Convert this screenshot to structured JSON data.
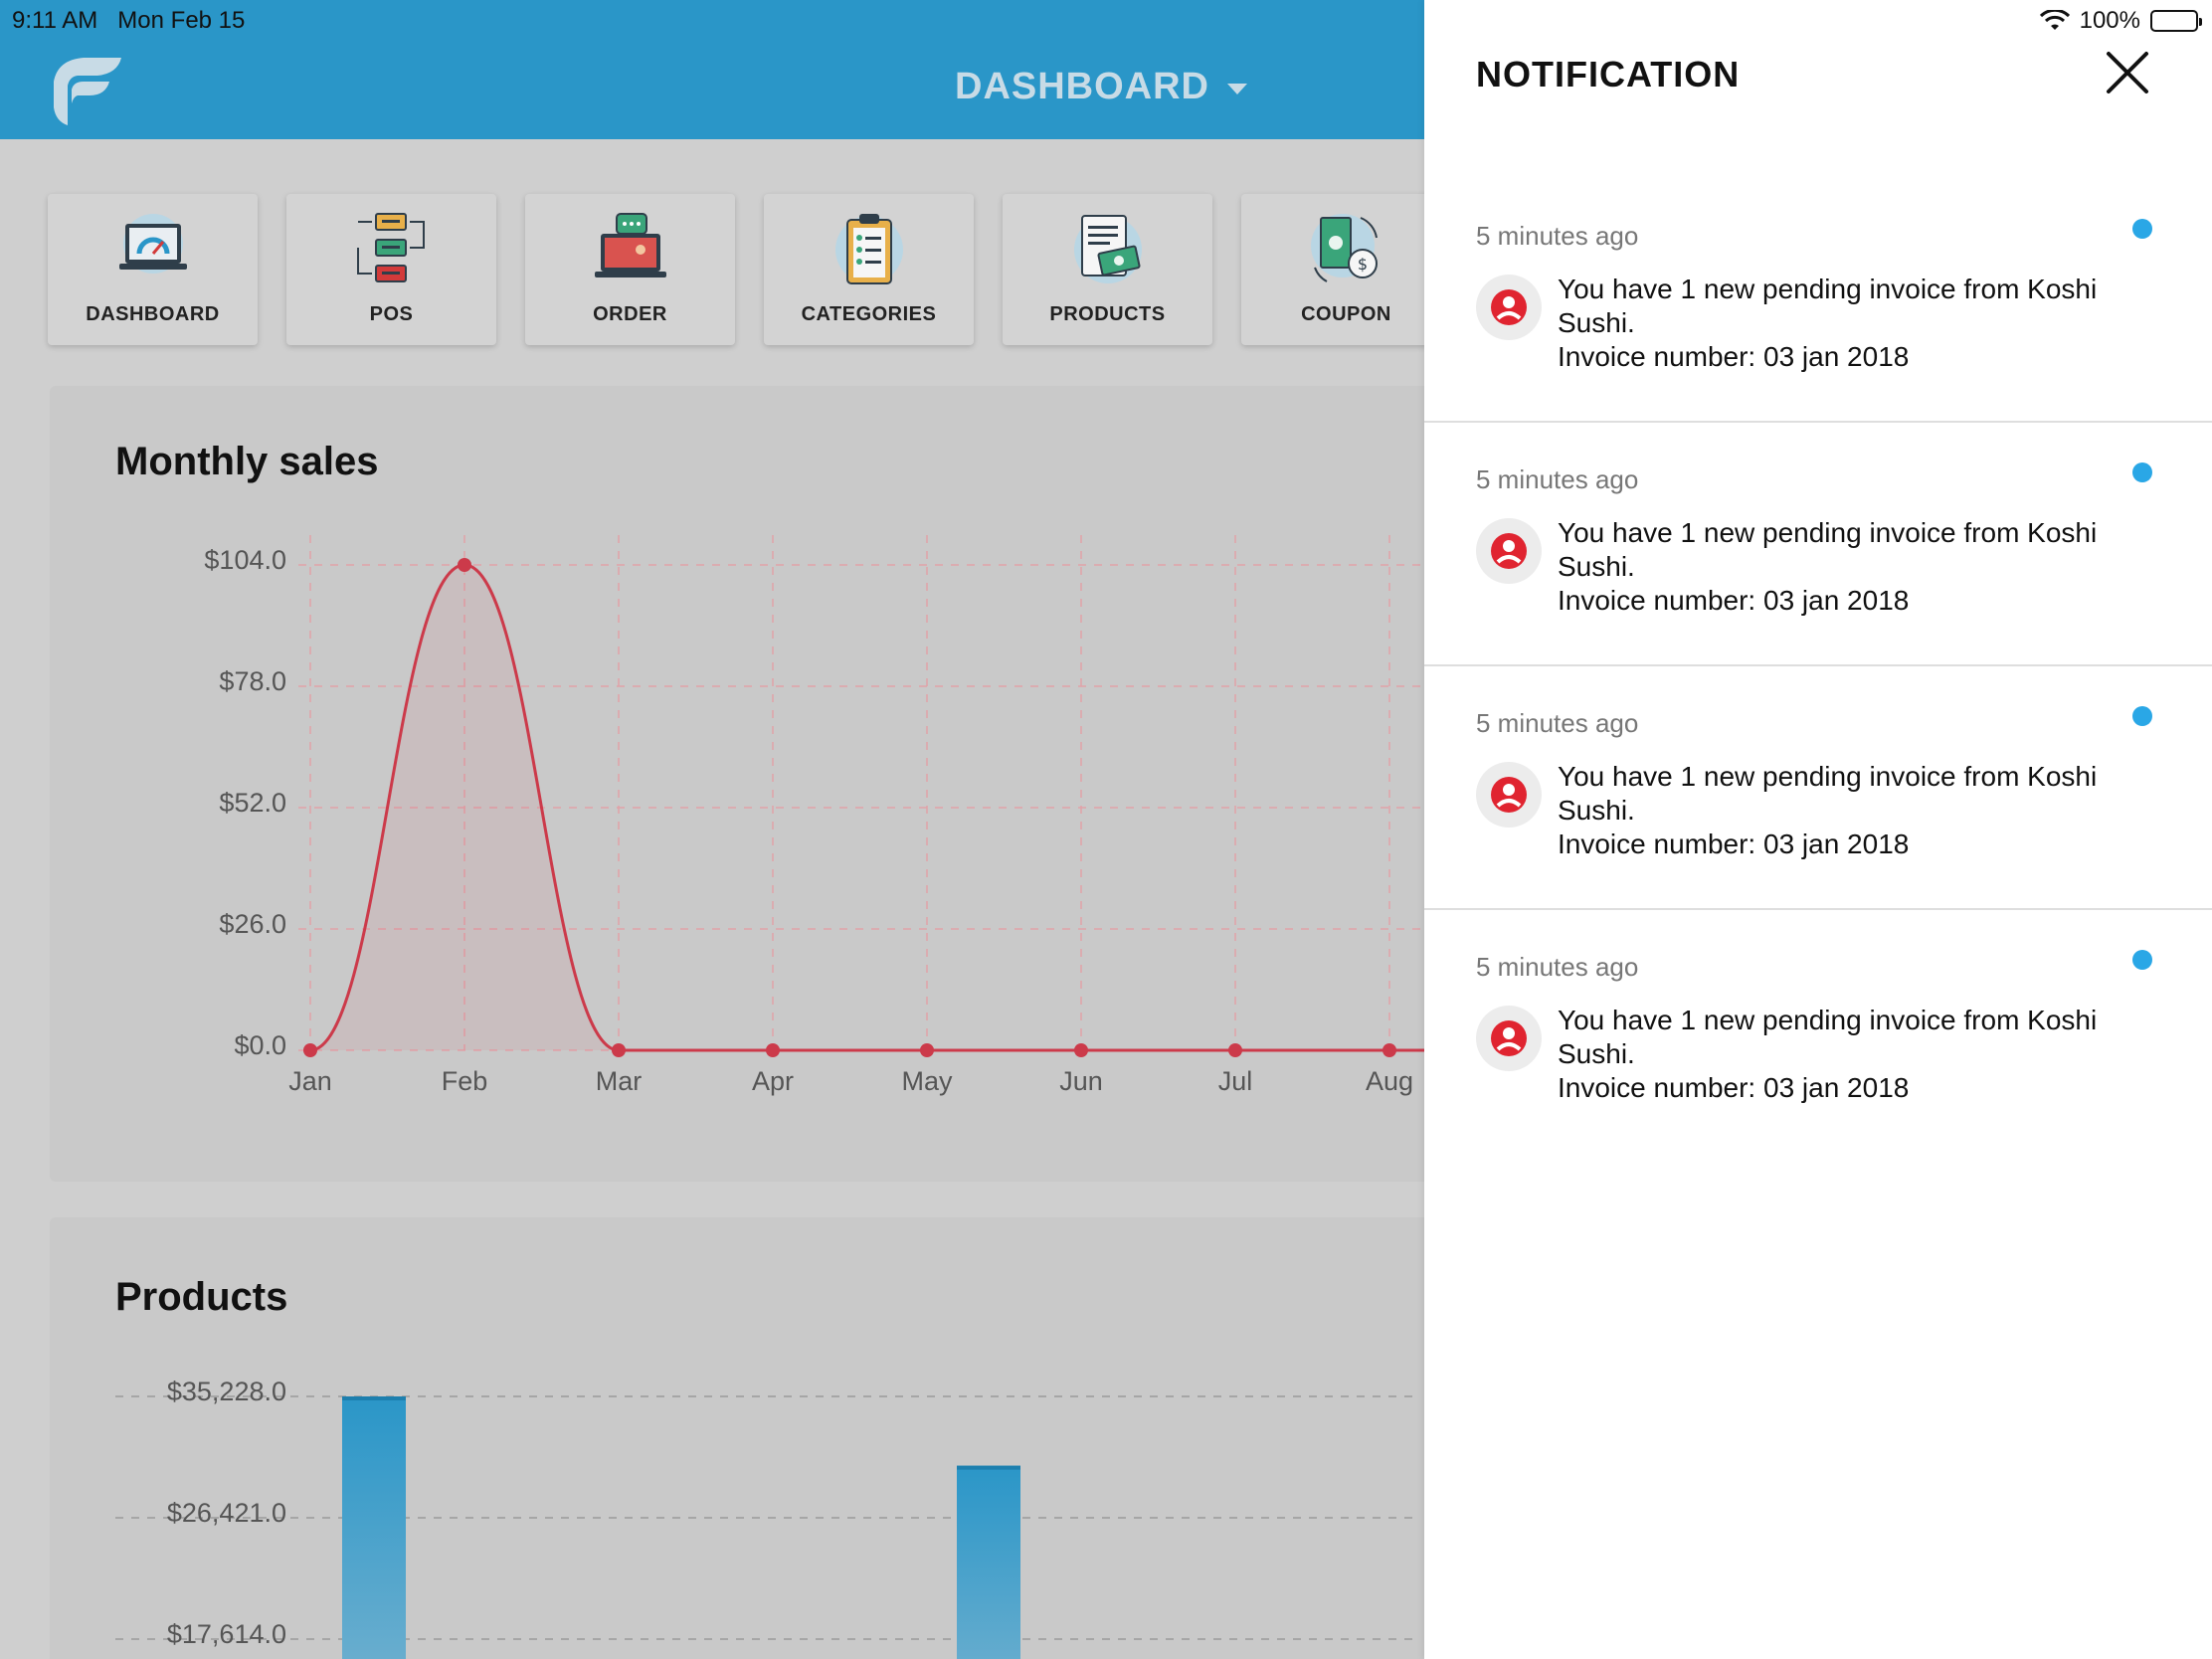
{
  "status_bar": {
    "time": "9:11 AM",
    "date": "Mon Feb 15",
    "battery": "100%"
  },
  "header": {
    "title": "DASHBOARD"
  },
  "nav_tiles": [
    {
      "label": "DASHBOARD",
      "icon": "dashboard-laptop-icon"
    },
    {
      "label": "POS",
      "icon": "pos-flow-icon"
    },
    {
      "label": "ORDER",
      "icon": "order-laptop-chat-icon"
    },
    {
      "label": "CATEGORIES",
      "icon": "clipboard-checklist-icon"
    },
    {
      "label": "PRODUCTS",
      "icon": "invoice-money-icon"
    },
    {
      "label": "COUPON",
      "icon": "coupon-money-icon"
    }
  ],
  "monthly_sales": {
    "title": "Monthly sales",
    "chart_data": {
      "type": "area",
      "categories": [
        "Jan",
        "Feb",
        "Mar",
        "Apr",
        "May",
        "Jun",
        "Jul",
        "Aug"
      ],
      "values": [
        0,
        104,
        0,
        0,
        0,
        0,
        0,
        0
      ],
      "y_ticks": [
        "$104.0",
        "$78.0",
        "$52.0",
        "$26.0",
        "$0.0"
      ],
      "ylim": [
        0,
        104
      ],
      "grid": true,
      "color": "#cc3a4a"
    }
  },
  "products": {
    "title": "Products",
    "chart_data": {
      "type": "bar",
      "y_ticks": [
        "$35,228.0",
        "$26,421.0",
        "$17,614.0"
      ],
      "ylim": [
        17614,
        35228
      ],
      "values": [
        35228,
        30200
      ],
      "grid": true,
      "color": "#2a96c8"
    }
  },
  "notification_panel": {
    "title": "NOTIFICATION",
    "items": [
      {
        "time": "5 minutes ago",
        "line1": "You have 1 new pending invoice from Koshi",
        "line2": "Sushi.",
        "line3": "Invoice number: 03 jan 2018"
      },
      {
        "time": "5 minutes ago",
        "line1": "You have 1 new pending invoice from Koshi",
        "line2": "Sushi.",
        "line3": "Invoice number: 03 jan 2018"
      },
      {
        "time": "5 minutes ago",
        "line1": "You have 1 new pending invoice from Koshi",
        "line2": "Sushi.",
        "line3": "Invoice number: 03 jan 2018"
      },
      {
        "time": "5 minutes ago",
        "line1": "You have 1 new pending invoice from Koshi",
        "line2": "Sushi.",
        "line3": "Invoice number: 03 jan 2018"
      }
    ]
  }
}
